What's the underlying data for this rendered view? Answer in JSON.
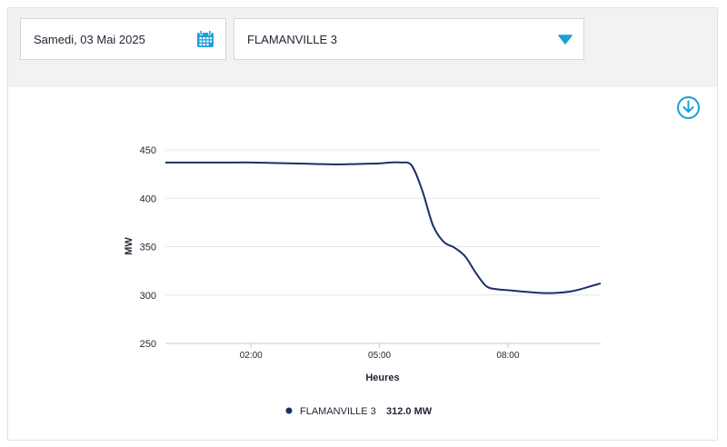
{
  "filters": {
    "date_value": "Samedi, 03 Mai 2025",
    "site_value": "FLAMANVILLE 3"
  },
  "icons": {
    "calendar": "calendar-icon",
    "dropdown": "caret-down-icon",
    "download": "download-icon"
  },
  "colors": {
    "accent": "#1ba0d8",
    "series": "#1b2f6b",
    "grid": "#e6e6e6",
    "panel": "#f2f2f2"
  },
  "chart_data": {
    "type": "line",
    "xlabel": "Heures",
    "ylabel": "MW",
    "ylim": [
      250,
      450
    ],
    "yticks": [
      250,
      300,
      350,
      400,
      450
    ],
    "xlim": [
      "00:00",
      "10:10"
    ],
    "xticks": [
      "02:00",
      "05:00",
      "08:00"
    ],
    "grid": true,
    "legend": "bottom",
    "series": [
      {
        "name": "FLAMANVILLE 3",
        "x": [
          "00:00",
          "00:30",
          "01:00",
          "01:30",
          "02:00",
          "02:30",
          "03:00",
          "03:30",
          "04:00",
          "04:30",
          "05:00",
          "05:15",
          "05:30",
          "05:45",
          "06:00",
          "06:15",
          "06:30",
          "06:45",
          "07:00",
          "07:15",
          "07:30",
          "07:45",
          "08:00",
          "08:30",
          "09:00",
          "09:30",
          "10:00",
          "10:10"
        ],
        "values": [
          437,
          437,
          437,
          437,
          437,
          436.5,
          436,
          435.5,
          435,
          435.5,
          436,
          437,
          437,
          434,
          408,
          372,
          355,
          349,
          340,
          323,
          309,
          306,
          305,
          303,
          302,
          304,
          310,
          312
        ]
      }
    ],
    "legend_items": [
      {
        "name": "FLAMANVILLE 3",
        "value_label": "312.0 MW"
      }
    ]
  }
}
